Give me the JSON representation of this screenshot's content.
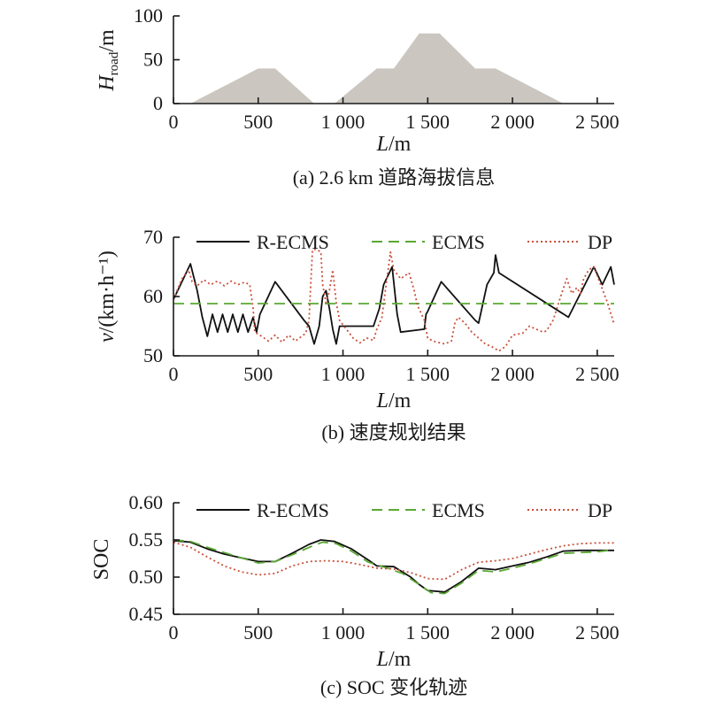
{
  "chart_data": [
    {
      "id": "a",
      "type": "area",
      "caption": "(a) 2.6 km 道路海拔信息",
      "ylabel_main": "H",
      "ylabel_sub": "road",
      "ylabel_unit": "/m",
      "xlabel_main": "L",
      "xlabel_unit": "/m",
      "xlim": [
        0,
        2600
      ],
      "ylim": [
        0,
        100
      ],
      "xticks": [
        0,
        500,
        1000,
        1500,
        2000,
        2500
      ],
      "xtick_labels": [
        "0",
        "500",
        "1 000",
        "1 500",
        "2 000",
        "2 500"
      ],
      "yticks": [
        0,
        50,
        100
      ],
      "ytick_labels": [
        "0",
        "50",
        "100"
      ],
      "fill_color": "#cbc6c0",
      "series": [
        {
          "values": [
            [
              100,
              0
            ],
            [
              500,
              40
            ],
            [
              600,
              40
            ],
            [
              830,
              0
            ],
            [
              950,
              0
            ],
            [
              1200,
              40
            ],
            [
              1300,
              40
            ],
            [
              1450,
              80
            ],
            [
              1570,
              80
            ],
            [
              1780,
              40
            ],
            [
              1900,
              40
            ],
            [
              2300,
              0
            ]
          ]
        }
      ]
    },
    {
      "id": "b",
      "type": "line",
      "caption": "(b) 速度规划结果",
      "ylabel_main": "v",
      "ylabel_unit": "/(km·h⁻¹)",
      "xlabel_main": "L",
      "xlabel_unit": "/m",
      "xlim": [
        0,
        2600
      ],
      "ylim": [
        50,
        70
      ],
      "xticks": [
        0,
        500,
        1000,
        1500,
        2000,
        2500
      ],
      "xtick_labels": [
        "0",
        "500",
        "1 000",
        "1 500",
        "2 000",
        "2 500"
      ],
      "yticks": [
        50,
        60,
        70
      ],
      "ytick_labels": [
        "50",
        "60",
        "70"
      ],
      "legend_position": "top",
      "series": [
        {
          "name": "R-ECMS",
          "color": "#111111",
          "style": "solid",
          "values": [
            [
              0,
              59.5
            ],
            [
              100,
              65.5
            ],
            [
              140,
              61.0
            ],
            [
              170,
              56.5
            ],
            [
              200,
              53.3
            ],
            [
              230,
              57.0
            ],
            [
              260,
              54.0
            ],
            [
              290,
              57.0
            ],
            [
              320,
              54.0
            ],
            [
              350,
              57.0
            ],
            [
              380,
              54.0
            ],
            [
              410,
              57.0
            ],
            [
              440,
              54.0
            ],
            [
              470,
              56.5
            ],
            [
              490,
              54.0
            ],
            [
              510,
              57.0
            ],
            [
              600,
              62.5
            ],
            [
              770,
              56.0
            ],
            [
              800,
              55.0
            ],
            [
              830,
              52.0
            ],
            [
              860,
              55.0
            ],
            [
              880,
              60.0
            ],
            [
              900,
              61.0
            ],
            [
              920,
              58.0
            ],
            [
              940,
              54.5
            ],
            [
              960,
              52.0
            ],
            [
              980,
              55.0
            ],
            [
              1100,
              55.0
            ],
            [
              1180,
              55.0
            ],
            [
              1215,
              58.0
            ],
            [
              1240,
              62.0
            ],
            [
              1290,
              65.0
            ],
            [
              1320,
              57.0
            ],
            [
              1340,
              54.0
            ],
            [
              1480,
              54.5
            ],
            [
              1490,
              57.0
            ],
            [
              1500,
              57.5
            ],
            [
              1580,
              62.5
            ],
            [
              1780,
              56.0
            ],
            [
              1800,
              55.5
            ],
            [
              1850,
              62.0
            ],
            [
              1890,
              64.0
            ],
            [
              1900,
              67.0
            ],
            [
              1920,
              64.0
            ],
            [
              2330,
              56.5
            ],
            [
              2480,
              65.0
            ],
            [
              2530,
              62.0
            ],
            [
              2580,
              65.0
            ],
            [
              2600,
              62.0
            ]
          ]
        },
        {
          "name": "ECMS",
          "color": "#5aa833",
          "style": "dashed",
          "values": [
            [
              0,
              58.8
            ],
            [
              2600,
              58.8
            ]
          ]
        },
        {
          "name": "DP",
          "color": "#c8503a",
          "style": "dotted",
          "values": [
            [
              0,
              59.5
            ],
            [
              50,
              63.0
            ],
            [
              90,
              64.5
            ],
            [
              110,
              62.5
            ],
            [
              140,
              61.8
            ],
            [
              180,
              62.8
            ],
            [
              220,
              62.0
            ],
            [
              260,
              62.6
            ],
            [
              300,
              61.8
            ],
            [
              340,
              62.6
            ],
            [
              380,
              62.0
            ],
            [
              420,
              62.4
            ],
            [
              450,
              62.0
            ],
            [
              470,
              58.0
            ],
            [
              480,
              54.0
            ],
            [
              520,
              53.3
            ],
            [
              560,
              52.5
            ],
            [
              600,
              53.5
            ],
            [
              640,
              52.3
            ],
            [
              680,
              53.5
            ],
            [
              720,
              52.5
            ],
            [
              780,
              53.8
            ],
            [
              800,
              56.0
            ],
            [
              810,
              62.0
            ],
            [
              820,
              67.8
            ],
            [
              840,
              68.0
            ],
            [
              870,
              67.5
            ],
            [
              880,
              62.0
            ],
            [
              900,
              59.0
            ],
            [
              920,
              61.0
            ],
            [
              940,
              64.5
            ],
            [
              960,
              59.0
            ],
            [
              980,
              56.0
            ],
            [
              1020,
              54.5
            ],
            [
              1060,
              53.0
            ],
            [
              1100,
              52.2
            ],
            [
              1140,
              53.0
            ],
            [
              1180,
              52.6
            ],
            [
              1200,
              54.5
            ],
            [
              1230,
              56.5
            ],
            [
              1250,
              61.0
            ],
            [
              1280,
              67.5
            ],
            [
              1300,
              64.5
            ],
            [
              1340,
              63.0
            ],
            [
              1390,
              64.0
            ],
            [
              1420,
              61.0
            ],
            [
              1440,
              58.5
            ],
            [
              1480,
              56.0
            ],
            [
              1500,
              53.0
            ],
            [
              1530,
              52.5
            ],
            [
              1600,
              52.0
            ],
            [
              1640,
              52.5
            ],
            [
              1660,
              55.5
            ],
            [
              1680,
              56.5
            ],
            [
              1720,
              55.5
            ],
            [
              1760,
              54.0
            ],
            [
              1800,
              53.0
            ],
            [
              1840,
              52.0
            ],
            [
              1880,
              51.5
            ],
            [
              1920,
              50.8
            ],
            [
              1960,
              51.6
            ],
            [
              2000,
              53.5
            ],
            [
              2060,
              53.8
            ],
            [
              2100,
              55.0
            ],
            [
              2140,
              54.5
            ],
            [
              2180,
              54.0
            ],
            [
              2200,
              54.2
            ],
            [
              2240,
              56.0
            ],
            [
              2290,
              60.5
            ],
            [
              2320,
              63.0
            ],
            [
              2350,
              60.5
            ],
            [
              2380,
              61.5
            ],
            [
              2400,
              60.5
            ],
            [
              2420,
              63.0
            ],
            [
              2450,
              64.5
            ],
            [
              2480,
              65.0
            ],
            [
              2520,
              62.0
            ],
            [
              2560,
              59.0
            ],
            [
              2600,
              55.3
            ]
          ]
        }
      ]
    },
    {
      "id": "c",
      "type": "line",
      "caption": "(c) SOC 变化轨迹",
      "ylabel_main": "SOC",
      "xlabel_main": "L",
      "xlabel_unit": "/m",
      "xlim": [
        0,
        2600
      ],
      "ylim": [
        0.45,
        0.6
      ],
      "xticks": [
        0,
        500,
        1000,
        1500,
        2000,
        2500
      ],
      "xtick_labels": [
        "0",
        "500",
        "1 000",
        "1 500",
        "2 000",
        "2 500"
      ],
      "yticks": [
        0.45,
        0.5,
        0.55,
        0.6
      ],
      "ytick_labels": [
        "0.45",
        "0.50",
        "0.55",
        "0.60"
      ],
      "legend_position": "top",
      "series": [
        {
          "name": "R-ECMS",
          "color": "#111111",
          "style": "solid",
          "values": [
            [
              0,
              0.549
            ],
            [
              100,
              0.547
            ],
            [
              200,
              0.538
            ],
            [
              300,
              0.531
            ],
            [
              400,
              0.526
            ],
            [
              500,
              0.521
            ],
            [
              600,
              0.521
            ],
            [
              700,
              0.532
            ],
            [
              800,
              0.544
            ],
            [
              870,
              0.55
            ],
            [
              950,
              0.548
            ],
            [
              1050,
              0.538
            ],
            [
              1150,
              0.523
            ],
            [
              1200,
              0.515
            ],
            [
              1300,
              0.514
            ],
            [
              1400,
              0.5
            ],
            [
              1450,
              0.49
            ],
            [
              1500,
              0.482
            ],
            [
              1600,
              0.48
            ],
            [
              1700,
              0.494
            ],
            [
              1800,
              0.512
            ],
            [
              1900,
              0.51
            ],
            [
              2000,
              0.515
            ],
            [
              2100,
              0.52
            ],
            [
              2200,
              0.527
            ],
            [
              2300,
              0.535
            ],
            [
              2400,
              0.536
            ],
            [
              2500,
              0.536
            ],
            [
              2600,
              0.536
            ]
          ]
        },
        {
          "name": "ECMS",
          "color": "#5aa833",
          "style": "dashed",
          "values": [
            [
              0,
              0.55
            ],
            [
              100,
              0.548
            ],
            [
              200,
              0.54
            ],
            [
              300,
              0.533
            ],
            [
              400,
              0.526
            ],
            [
              500,
              0.519
            ],
            [
              600,
              0.521
            ],
            [
              700,
              0.53
            ],
            [
              800,
              0.54
            ],
            [
              880,
              0.547
            ],
            [
              960,
              0.545
            ],
            [
              1050,
              0.535
            ],
            [
              1150,
              0.52
            ],
            [
              1250,
              0.513
            ],
            [
              1350,
              0.505
            ],
            [
              1450,
              0.49
            ],
            [
              1520,
              0.479
            ],
            [
              1600,
              0.478
            ],
            [
              1700,
              0.492
            ],
            [
              1800,
              0.509
            ],
            [
              1900,
              0.507
            ],
            [
              2000,
              0.512
            ],
            [
              2100,
              0.518
            ],
            [
              2200,
              0.525
            ],
            [
              2300,
              0.532
            ],
            [
              2400,
              0.533
            ],
            [
              2500,
              0.534
            ],
            [
              2600,
              0.537
            ]
          ]
        },
        {
          "name": "DP",
          "color": "#c8503a",
          "style": "dotted",
          "values": [
            [
              0,
              0.547
            ],
            [
              100,
              0.54
            ],
            [
              200,
              0.527
            ],
            [
              300,
              0.515
            ],
            [
              400,
              0.507
            ],
            [
              500,
              0.503
            ],
            [
              600,
              0.505
            ],
            [
              700,
              0.515
            ],
            [
              800,
              0.521
            ],
            [
              900,
              0.522
            ],
            [
              1000,
              0.521
            ],
            [
              1100,
              0.517
            ],
            [
              1200,
              0.512
            ],
            [
              1300,
              0.511
            ],
            [
              1400,
              0.506
            ],
            [
              1500,
              0.498
            ],
            [
              1600,
              0.497
            ],
            [
              1700,
              0.51
            ],
            [
              1800,
              0.52
            ],
            [
              1900,
              0.522
            ],
            [
              2000,
              0.525
            ],
            [
              2100,
              0.531
            ],
            [
              2200,
              0.537
            ],
            [
              2300,
              0.542
            ],
            [
              2400,
              0.545
            ],
            [
              2500,
              0.546
            ],
            [
              2600,
              0.546
            ]
          ]
        }
      ]
    }
  ]
}
